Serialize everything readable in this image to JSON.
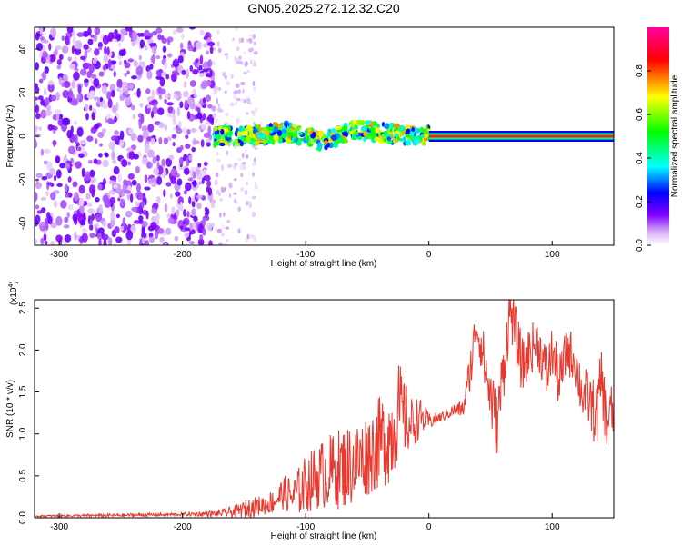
{
  "title": "GN05.2025.272.12.32.C20",
  "chart_data": [
    {
      "type": "heatmap",
      "title": "GN05.2025.272.12.32.C20",
      "xlabel": "Height of straight line (km)",
      "ylabel": "Frequency (Hz)",
      "xlim": [
        -320,
        150
      ],
      "ylim": [
        -50,
        50
      ],
      "xticks": [
        -300,
        -200,
        -100,
        0,
        100
      ],
      "xtick_labels": [
        "-300",
        "-200",
        "-100",
        "0",
        "100"
      ],
      "yticks": [
        -40,
        -20,
        0,
        20,
        40
      ],
      "ytick_labels": [
        "-40",
        "-20",
        "0",
        "20",
        "40"
      ],
      "colorbar": {
        "label": "Normalized spectral amplitude",
        "range": [
          0,
          1
        ],
        "ticks": [
          0.0,
          0.2,
          0.4,
          0.6,
          0.8
        ],
        "tick_labels": [
          "0.0",
          "0.2",
          "0.4",
          "0.6",
          "0.8"
        ],
        "colors": [
          "#ffffff",
          "#d8b0f8",
          "#8000ff",
          "#0000ff",
          "#00ffff",
          "#00ff00",
          "#ffff00",
          "#ff0000",
          "#ff00a0"
        ]
      },
      "regions": [
        {
          "name": "noise",
          "x_range": [
            -320,
            -175
          ],
          "freq_range": [
            -50,
            50
          ],
          "amplitude": "0.2-0.4"
        },
        {
          "name": "sparse-noise",
          "x_range": [
            -175,
            -140
          ],
          "freq_range": [
            -50,
            50
          ],
          "amplitude": "0.05-0.2"
        },
        {
          "name": "signal-band",
          "x_range": [
            -175,
            0
          ],
          "freq_center": [
            0,
            0,
            2,
            -2,
            3,
            1,
            0
          ],
          "freq_halfwidth": 4,
          "amplitude": "0.4-0.9"
        },
        {
          "name": "carrier-line",
          "x_range": [
            0,
            150
          ],
          "freq_center": 0,
          "freq_halfwidth": 1.5,
          "amplitude": "0.9"
        }
      ]
    },
    {
      "type": "line",
      "xlabel": "Height of straight line (km)",
      "ylabel": "SNR (10 * v/v)",
      "y_multiplier_label": "(x10",
      "y_multiplier_exp": "4",
      "y_multiplier_close": ")",
      "xlim": [
        -320,
        150
      ],
      "ylim": [
        0,
        2.6
      ],
      "xticks": [
        -300,
        -200,
        -100,
        0,
        100
      ],
      "xtick_labels": [
        "-300",
        "-200",
        "-100",
        "0",
        "100"
      ],
      "yticks": [
        0.0,
        0.5,
        1.0,
        1.5,
        2.0,
        2.5
      ],
      "ytick_labels": [
        "0.0",
        "0.5",
        "1.0",
        "1.5",
        "2.0",
        "2.5"
      ],
      "series": [
        {
          "name": "SNR",
          "color": "#e8392f",
          "x": [
            -320,
            -250,
            -200,
            -170,
            -155,
            -145,
            -135,
            -125,
            -118,
            -110,
            -100,
            -90,
            -80,
            -70,
            -60,
            -50,
            -40,
            -30,
            -25,
            -15,
            -8,
            0,
            10,
            20,
            28,
            35,
            38,
            42,
            48,
            55,
            60,
            66,
            70,
            76,
            82,
            88,
            92,
            96,
            100,
            106,
            112,
            118,
            124,
            130,
            136,
            140,
            144,
            148,
            150
          ],
          "y": [
            0.02,
            0.03,
            0.04,
            0.05,
            0.08,
            0.12,
            0.15,
            0.2,
            0.3,
            0.25,
            0.4,
            0.5,
            0.55,
            0.6,
            0.65,
            0.75,
            0.9,
            1.0,
            1.3,
            1.1,
            1.2,
            1.15,
            1.2,
            1.28,
            1.3,
            1.9,
            2.3,
            2.1,
            1.6,
            1.1,
            1.7,
            2.5,
            2.2,
            1.8,
            2.0,
            2.1,
            1.9,
            1.7,
            2.0,
            1.6,
            2.0,
            1.9,
            1.5,
            1.4,
            1.2,
            1.7,
            1.1,
            1.3,
            1.1
          ],
          "noise": [
            0.01,
            0.02,
            0.02,
            0.04,
            0.08,
            0.12,
            0.12,
            0.15,
            0.2,
            0.25,
            0.35,
            0.4,
            0.45,
            0.5,
            0.5,
            0.5,
            0.55,
            0.6,
            0.6,
            0.35,
            0.25,
            0.1,
            0.06,
            0.08,
            0.1,
            0.3,
            0.2,
            0.3,
            0.4,
            0.4,
            0.4,
            0.3,
            0.35,
            0.35,
            0.3,
            0.3,
            0.3,
            0.35,
            0.3,
            0.35,
            0.3,
            0.3,
            0.35,
            0.35,
            0.4,
            0.35,
            0.4,
            0.3,
            0.3
          ]
        }
      ]
    }
  ]
}
